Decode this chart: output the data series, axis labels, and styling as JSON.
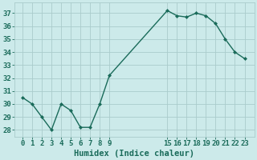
{
  "x": [
    0,
    1,
    2,
    3,
    4,
    5,
    6,
    7,
    8,
    9,
    15,
    16,
    17,
    18,
    19,
    20,
    21,
    22,
    23
  ],
  "y": [
    30.5,
    30.0,
    29.0,
    28.0,
    30.0,
    29.5,
    28.2,
    28.2,
    30.0,
    32.2,
    37.2,
    36.8,
    36.7,
    37.0,
    36.8,
    36.2,
    35.0,
    34.0,
    33.5
  ],
  "line_color": "#1a6b5a",
  "marker": "D",
  "marker_size": 2,
  "bg_color": "#cceaea",
  "grid_color": "#aacccc",
  "xlabel": "Humidex (Indice chaleur)",
  "xlabel_fontsize": 7.5,
  "ylabel_ticks": [
    28,
    29,
    30,
    31,
    32,
    33,
    34,
    35,
    36,
    37
  ],
  "xtick_labels": [
    "0",
    "1",
    "2",
    "3",
    "4",
    "5",
    "6",
    "7",
    "8",
    "9",
    "15",
    "16",
    "17",
    "18",
    "19",
    "20",
    "21",
    "22",
    "23"
  ],
  "xlim": [
    -0.8,
    24.0
  ],
  "ylim": [
    27.5,
    37.8
  ],
  "tick_fontsize": 6.5,
  "line_width": 1.0
}
